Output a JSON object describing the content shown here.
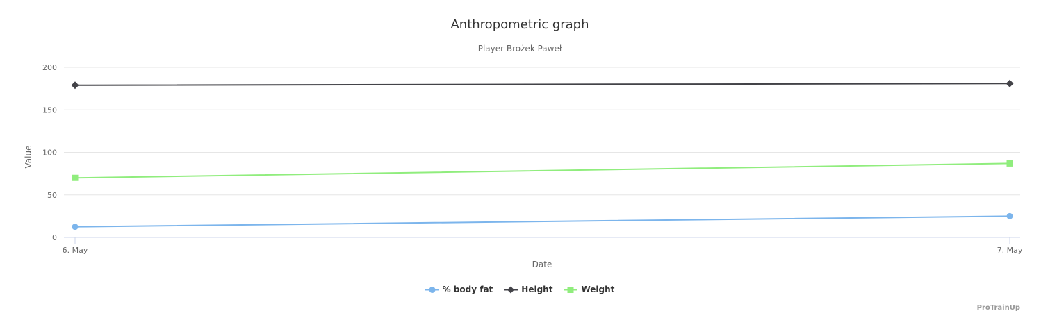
{
  "chart": {
    "title": "Anthropometric graph",
    "subtitle": "Player Brożek Paweł",
    "xlabel": "Date",
    "ylabel": "Value",
    "credits": "ProTrainUp",
    "menu_icon": "hamburger-icon"
  },
  "chart_data": {
    "type": "line",
    "categories": [
      "6. May",
      "7. May"
    ],
    "series": [
      {
        "name": "% body fat",
        "values": [
          12.5,
          25
        ],
        "color": "#7cb5ec",
        "marker": "circle"
      },
      {
        "name": "Height",
        "values": [
          179,
          181
        ],
        "color": "#434348",
        "marker": "diamond"
      },
      {
        "name": "Weight",
        "values": [
          70,
          87
        ],
        "color": "#90ed7d",
        "marker": "square"
      }
    ],
    "title": "Anthropometric graph",
    "subtitle": "Player Brożek Paweł",
    "xlabel": "Date",
    "ylabel": "Value",
    "ylim": [
      0,
      200
    ],
    "yticks": [
      0,
      50,
      100,
      150,
      200
    ],
    "grid": true,
    "legend_position": "bottom",
    "colors": {
      "gridline": "#e6e6e6",
      "axis_line": "#ccd6eb",
      "tick_label": "#666666",
      "title": "#333333",
      "legend_text": "#333333",
      "credits": "#999999"
    }
  }
}
